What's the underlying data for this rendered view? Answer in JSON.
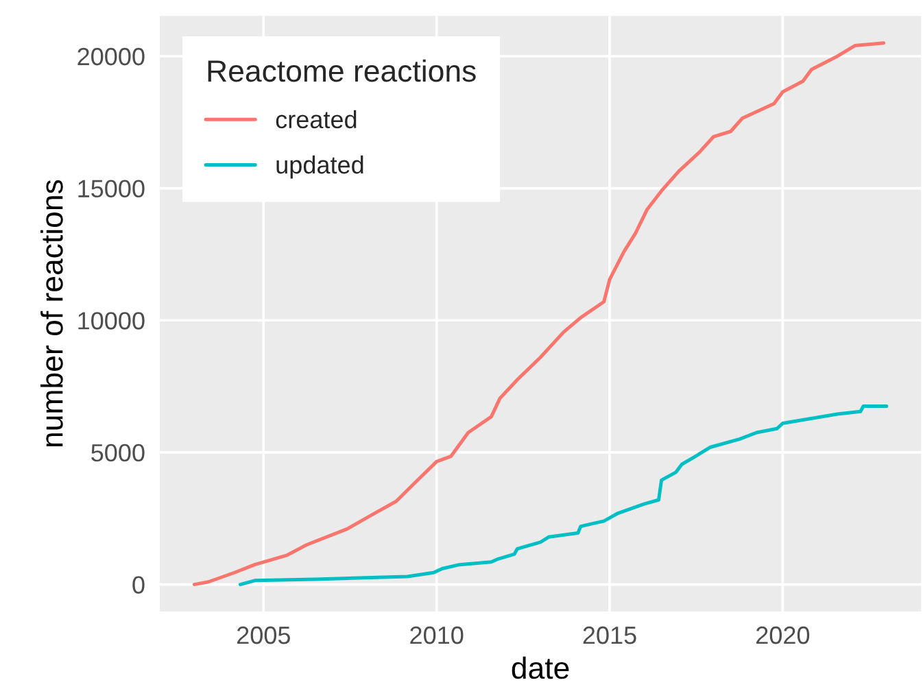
{
  "chart_data": {
    "type": "line",
    "xlabel": "date",
    "ylabel": "number of reactions",
    "legend_title": "Reactome reactions",
    "xlim": [
      "2002-01",
      "2024-01"
    ],
    "xticks": [
      {
        "value": "2005-01-01",
        "label": "2005"
      },
      {
        "value": "2010-01-01",
        "label": "2010"
      },
      {
        "value": "2015-01-01",
        "label": "2015"
      },
      {
        "value": "2020-01-01",
        "label": "2020"
      }
    ],
    "ylim": [
      -1025,
      21525
    ],
    "yticks": [
      0,
      5000,
      10000,
      15000,
      20000
    ],
    "grid": true,
    "legend": "top left",
    "line_style": "solid",
    "marker": "none",
    "series": [
      {
        "name": "created",
        "color": "#f8766d",
        "x": [
          "2003-01",
          "2003-06",
          "2004-03",
          "2004-10",
          "2005-09",
          "2006-04",
          "2007-06",
          "2008-02",
          "2008-11",
          "2009-06",
          "2010-01",
          "2010-06",
          "2010-12",
          "2011-08",
          "2011-11",
          "2012-05",
          "2013-01",
          "2013-09",
          "2014-03",
          "2014-11",
          "2015-01",
          "2015-06",
          "2015-10",
          "2016-02",
          "2016-07",
          "2017-01",
          "2017-08",
          "2018-01",
          "2018-07",
          "2018-11",
          "2019-10",
          "2020-01",
          "2020-08",
          "2020-11",
          "2021-08",
          "2022-02",
          "2022-12"
        ],
        "values": [
          0,
          100,
          450,
          750,
          1100,
          1500,
          2100,
          2600,
          3150,
          3900,
          4650,
          4850,
          5750,
          6350,
          7050,
          7750,
          8600,
          9550,
          10100,
          10700,
          11550,
          12600,
          13300,
          14200,
          14900,
          15650,
          16350,
          16950,
          17150,
          17650,
          18200,
          18650,
          19050,
          19500,
          20000,
          20400,
          20500
        ]
      },
      {
        "name": "updated",
        "color": "#00bfc4",
        "x": [
          "2004-05",
          "2004-10",
          "2006-07",
          "2009-03",
          "2009-12",
          "2010-03",
          "2010-09",
          "2011-08",
          "2011-10",
          "2012-04",
          "2012-05",
          "2013-01",
          "2013-04",
          "2014-02",
          "2014-03",
          "2014-11",
          "2015-04",
          "2016-01",
          "2016-06",
          "2016-07",
          "2016-12",
          "2017-02",
          "2017-06",
          "2017-12",
          "2018-10",
          "2019-04",
          "2019-11",
          "2020-01",
          "2021-08",
          "2022-04",
          "2022-05",
          "2023-01"
        ],
        "values": [
          0,
          150,
          200,
          300,
          450,
          600,
          750,
          850,
          950,
          1150,
          1350,
          1600,
          1800,
          1950,
          2200,
          2400,
          2700,
          3050,
          3200,
          3950,
          4250,
          4550,
          4800,
          5200,
          5500,
          5750,
          5900,
          6100,
          6450,
          6550,
          6750,
          6750
        ]
      }
    ]
  }
}
